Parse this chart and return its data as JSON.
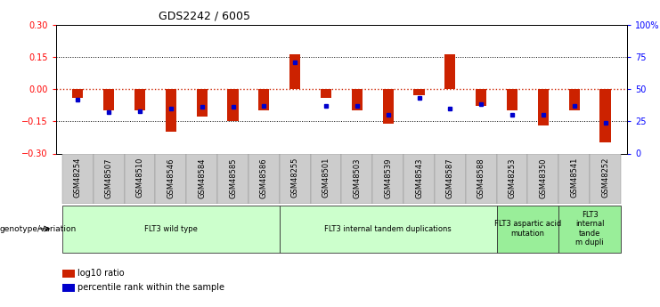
{
  "title": "GDS2242 / 6005",
  "samples": [
    "GSM48254",
    "GSM48507",
    "GSM48510",
    "GSM48546",
    "GSM48584",
    "GSM48585",
    "GSM48586",
    "GSM48255",
    "GSM48501",
    "GSM48503",
    "GSM48539",
    "GSM48543",
    "GSM48587",
    "GSM48588",
    "GSM48253",
    "GSM48350",
    "GSM48541",
    "GSM48252"
  ],
  "log10_ratio": [
    -0.04,
    -0.1,
    -0.1,
    -0.2,
    -0.13,
    -0.15,
    -0.1,
    0.16,
    -0.04,
    -0.1,
    -0.16,
    -0.03,
    0.16,
    -0.08,
    -0.1,
    -0.17,
    -0.1,
    -0.25
  ],
  "percentile_rank": [
    42,
    32,
    33,
    35,
    36,
    36,
    37,
    71,
    37,
    37,
    30,
    43,
    35,
    38,
    30,
    30,
    37,
    24
  ],
  "groups": [
    {
      "label": "FLT3 wild type",
      "start": 0,
      "end": 6,
      "color": "#ccffcc"
    },
    {
      "label": "FLT3 internal tandem duplications",
      "start": 7,
      "end": 13,
      "color": "#ccffcc"
    },
    {
      "label": "FLT3 aspartic acid\nmutation",
      "start": 14,
      "end": 15,
      "color": "#99ee99"
    },
    {
      "label": "FLT3\ninternal\ntande\nm dupli",
      "start": 16,
      "end": 17,
      "color": "#99ee99"
    }
  ],
  "ylim": [
    -0.3,
    0.3
  ],
  "yticks": [
    -0.3,
    -0.15,
    0.0,
    0.15,
    0.3
  ],
  "y2ticks": [
    0,
    25,
    50,
    75,
    100
  ],
  "bar_color": "#cc2200",
  "dot_color": "#0000cc",
  "bar_width": 0.35,
  "genotype_label": "genotype/variation",
  "legend_log10": "log10 ratio",
  "legend_pct": "percentile rank within the sample"
}
